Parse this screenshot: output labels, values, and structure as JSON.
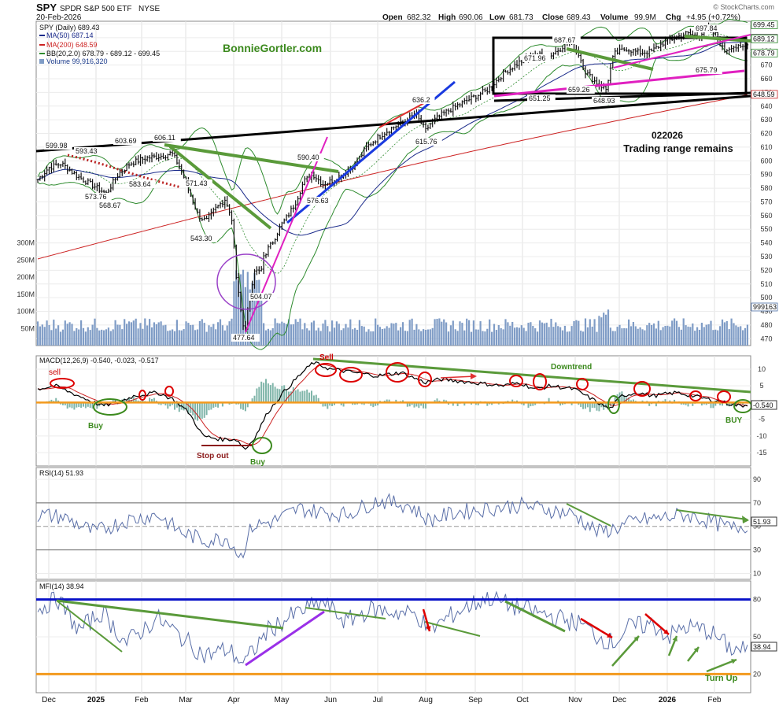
{
  "header": {
    "symbol": "SPY",
    "name": "SPDR S&P 500 ETF",
    "exchange": "NYSE",
    "date": "20-Feb-2026",
    "watermark": "© StockCharts.com",
    "open_label": "Open",
    "open": "682.32",
    "high_label": "High",
    "high": "690.06",
    "low_label": "Low",
    "low": "681.73",
    "close_label": "Close",
    "close": "689.43",
    "volume_label": "Volume",
    "volume": "99.9M",
    "chg_label": "Chg",
    "chg": "+4.95 (+0.72%)"
  },
  "legend": {
    "price": "SPY (Daily) 689.43",
    "ma50": "MA(50) 687.14",
    "ma200": "MA(200) 648.59",
    "bb": "BB(20,2.0) 678.79 - 689.12 - 699.45",
    "volume": "Volume 99,916,320"
  },
  "annotations": {
    "site": "BonnieGortler.com",
    "date_code": "022026",
    "note": "Trading range remains",
    "macd_sell_1": "sell",
    "macd_buy_1": "Buy",
    "macd_stop": "Stop out",
    "macd_buy_2": "Buy",
    "macd_sell_2": "Sell",
    "macd_downtrend": "Downtrend",
    "macd_buy_3": "BUY",
    "mfi_turn": "Turn Up"
  },
  "indicators": {
    "macd_label": "MACD(12,26,9) -0.540, -0.023, -0.517",
    "rsi_label": "RSI(14) 51.93",
    "mfi_label": "MFI(14) 38.94",
    "macd_last": "-0.540",
    "rsi_last": "51.93",
    "mfi_last": "38.94"
  },
  "colors": {
    "ma50": "#1a2a8a",
    "ma200": "#cc2222",
    "bb": "#2e8b2e",
    "volume": "#7f9cc6",
    "green_line": "#5a9a3a",
    "magenta": "#e020c0",
    "blue_line": "#1a3adf",
    "orange": "#f39a1e",
    "macd_hist": "#7fb5a9"
  },
  "chart_data": [
    {
      "type": "line",
      "title": "SPY (Daily)",
      "ylim": [
        465,
        700
      ],
      "x_ticks": [
        "Dec",
        "2025",
        "Feb",
        "Mar",
        "Apr",
        "May",
        "Jun",
        "Jul",
        "Aug",
        "Sep",
        "Oct",
        "Nov",
        "Dec",
        "2026",
        "Feb"
      ],
      "y_ticks": [
        470,
        480,
        490,
        500,
        510,
        520,
        530,
        540,
        550,
        560,
        570,
        580,
        590,
        600,
        610,
        620,
        630,
        640,
        650,
        660,
        670,
        680,
        690,
        700
      ],
      "volume_ticks": [
        "50M",
        "100M",
        "150M",
        "200M",
        "250M",
        "300M"
      ],
      "right_labels": [
        "699.45",
        "689.43",
        "689.12",
        "678.79",
        "648.59",
        "999163"
      ],
      "price_labels": [
        "599.98",
        "593.43",
        "603.69",
        "606.11",
        "573.76",
        "568.67",
        "583.64",
        "571.43",
        "543.30",
        "477.64",
        "504.07",
        "590.40",
        "576.63",
        "636.2",
        "615.76",
        "671.96",
        "687.67",
        "651.25",
        "659.26",
        "648.93",
        "697.84",
        "675.79"
      ],
      "close_series": [
        {
          "x": "Dec 2024",
          "y": 597
        },
        {
          "x": "early Jan 2025",
          "y": 583
        },
        {
          "x": "mid Jan",
          "y": 575
        },
        {
          "x": "late Jan",
          "y": 598
        },
        {
          "x": "mid Feb",
          "y": 606
        },
        {
          "x": "early Mar",
          "y": 576
        },
        {
          "x": "mid Mar",
          "y": 555
        },
        {
          "x": "late Mar",
          "y": 572
        },
        {
          "x": "early Apr",
          "y": 496
        },
        {
          "x": "Apr low",
          "y": 478
        },
        {
          "x": "mid Apr",
          "y": 525
        },
        {
          "x": "late Apr",
          "y": 545
        },
        {
          "x": "early May",
          "y": 565
        },
        {
          "x": "mid May",
          "y": 590
        },
        {
          "x": "early Jun",
          "y": 595
        },
        {
          "x": "late Jun",
          "y": 610
        },
        {
          "x": "mid Jul",
          "y": 630
        },
        {
          "x": "late Jul",
          "y": 636
        },
        {
          "x": "early Aug",
          "y": 617
        },
        {
          "x": "late Aug",
          "y": 642
        },
        {
          "x": "mid Sep",
          "y": 660
        },
        {
          "x": "early Oct",
          "y": 671
        },
        {
          "x": "late Oct",
          "y": 687
        },
        {
          "x": "early Nov",
          "y": 675
        },
        {
          "x": "late Nov",
          "y": 649
        },
        {
          "x": "early Dec",
          "y": 683
        },
        {
          "x": "mid Dec",
          "y": 681
        },
        {
          "x": "early Jan 2026",
          "y": 692
        },
        {
          "x": "late Jan",
          "y": 697
        },
        {
          "x": "early Feb",
          "y": 681
        },
        {
          "x": "20 Feb 2026",
          "y": 689.43
        }
      ]
    },
    {
      "type": "line",
      "title": "MACD(12,26,9)",
      "ylim": [
        -19,
        14
      ],
      "y_ticks": [
        10,
        5,
        0,
        -5,
        -10,
        -15
      ],
      "values": {
        "macd": -0.54,
        "signal": -0.023,
        "histogram": -0.517
      }
    },
    {
      "type": "line",
      "title": "RSI(14)",
      "ylim": [
        5,
        100
      ],
      "y_ticks": [
        90,
        70,
        50,
        30,
        10
      ],
      "last": 51.93
    },
    {
      "type": "line",
      "title": "MFI(14)",
      "ylim": [
        5,
        95
      ],
      "y_ticks": [
        80,
        50,
        20
      ],
      "last": 38.94
    }
  ]
}
